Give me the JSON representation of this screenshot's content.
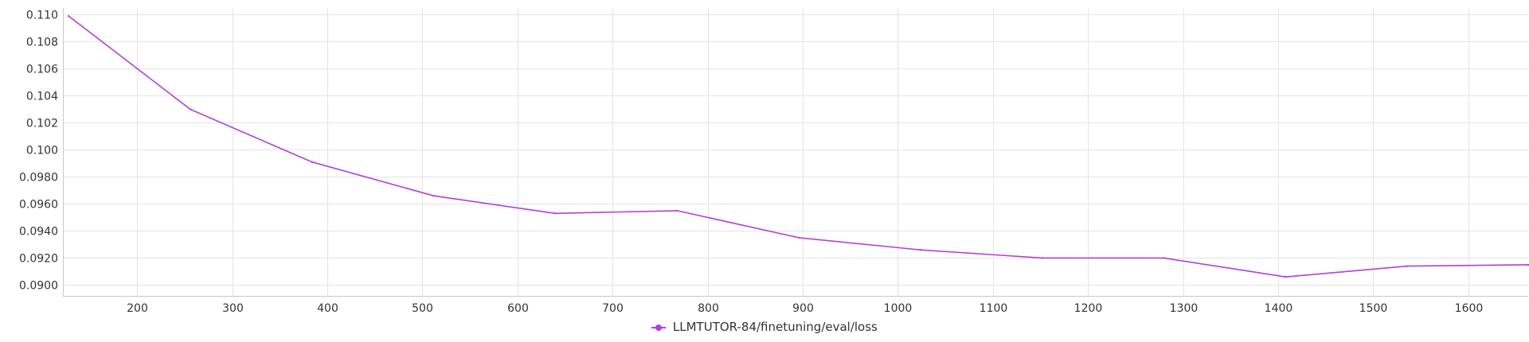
{
  "chart_data": {
    "type": "line",
    "title": "",
    "xlabel": "",
    "ylabel": "",
    "xlim": [
      122,
      1663
    ],
    "ylim": [
      0.0892,
      0.1105
    ],
    "x_ticks": [
      200,
      300,
      400,
      500,
      600,
      700,
      800,
      900,
      1000,
      1100,
      1200,
      1300,
      1400,
      1500,
      1600
    ],
    "x_tick_labels": [
      "200",
      "300",
      "400",
      "500",
      "600",
      "700",
      "800",
      "900",
      "1000",
      "1100",
      "1200",
      "1300",
      "1400",
      "1500",
      "1600"
    ],
    "y_ticks": [
      0.09,
      0.092,
      0.094,
      0.096,
      0.098,
      0.1,
      0.102,
      0.104,
      0.106,
      0.108,
      0.11
    ],
    "y_tick_labels": [
      "0.0900",
      "0.0920",
      "0.0940",
      "0.0960",
      "0.0980",
      "0.100",
      "0.102",
      "0.104",
      "0.106",
      "0.108",
      "0.110"
    ],
    "grid": true,
    "legend_position": "bottom-center",
    "series": [
      {
        "name": "LLMTUTOR-84/finetuning/eval/loss",
        "color": "#b43fd6",
        "x": [
          128,
          256,
          384,
          512,
          640,
          768,
          896,
          1024,
          1152,
          1280,
          1408,
          1536,
          1663
        ],
        "y": [
          0.1099,
          0.103,
          0.0991,
          0.0966,
          0.0953,
          0.0955,
          0.0935,
          0.0926,
          0.092,
          0.092,
          0.0906,
          0.0914,
          0.0915
        ]
      }
    ]
  }
}
